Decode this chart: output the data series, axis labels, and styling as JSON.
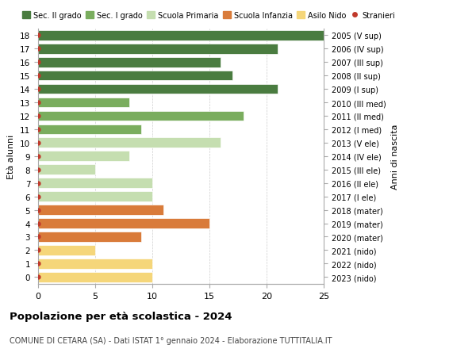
{
  "ages": [
    0,
    1,
    2,
    3,
    4,
    5,
    6,
    7,
    8,
    9,
    10,
    11,
    12,
    13,
    14,
    15,
    16,
    17,
    18
  ],
  "right_labels": [
    "2023 (nido)",
    "2022 (nido)",
    "2021 (nido)",
    "2020 (mater)",
    "2019 (mater)",
    "2018 (mater)",
    "2017 (I ele)",
    "2016 (II ele)",
    "2015 (III ele)",
    "2014 (IV ele)",
    "2013 (V ele)",
    "2012 (I med)",
    "2011 (II med)",
    "2010 (III med)",
    "2009 (I sup)",
    "2008 (II sup)",
    "2007 (III sup)",
    "2006 (IV sup)",
    "2005 (V sup)"
  ],
  "values": [
    10,
    10,
    5,
    9,
    15,
    11,
    10,
    10,
    5,
    8,
    16,
    9,
    18,
    8,
    21,
    17,
    16,
    21,
    25
  ],
  "categories": [
    "Asilo Nido",
    "Asilo Nido",
    "Asilo Nido",
    "Scuola Infanzia",
    "Scuola Infanzia",
    "Scuola Infanzia",
    "Scuola Primaria",
    "Scuola Primaria",
    "Scuola Primaria",
    "Scuola Primaria",
    "Scuola Primaria",
    "Sec. I grado",
    "Sec. I grado",
    "Sec. I grado",
    "Sec. II grado",
    "Sec. II grado",
    "Sec. II grado",
    "Sec. II grado",
    "Sec. II grado"
  ],
  "colors": {
    "Sec. II grado": "#4a7c40",
    "Sec. I grado": "#7aad5e",
    "Scuola Primaria": "#c5deb0",
    "Scuola Infanzia": "#d97b3a",
    "Asilo Nido": "#f5d67a"
  },
  "stranieri_color": "#c0392b",
  "legend_labels": [
    "Sec. II grado",
    "Sec. I grado",
    "Scuola Primaria",
    "Scuola Infanzia",
    "Asilo Nido",
    "Stranieri"
  ],
  "ylabel_left": "Età alunni",
  "ylabel_right": "Anni di nascita",
  "xlim": [
    0,
    25
  ],
  "xticks": [
    0,
    5,
    10,
    15,
    20,
    25
  ],
  "title": "Popolazione per età scolastica - 2024",
  "subtitle": "COMUNE DI CETARA (SA) - Dati ISTAT 1° gennaio 2024 - Elaborazione TUTTITALIA.IT",
  "background_color": "#ffffff",
  "grid_color": "#cccccc",
  "bar_height": 0.75
}
